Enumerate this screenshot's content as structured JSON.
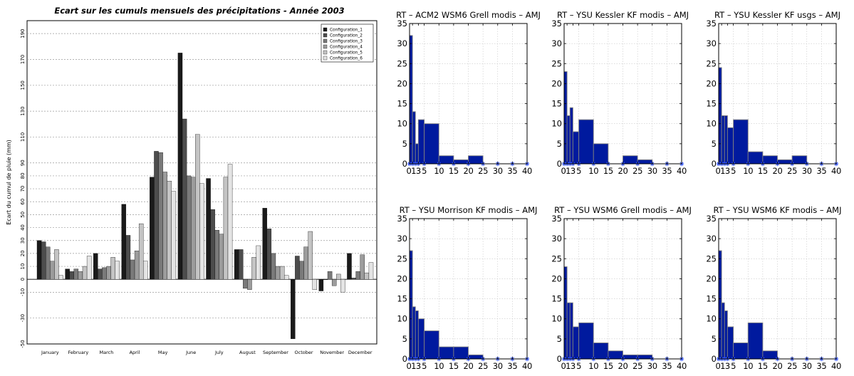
{
  "left_chart": {
    "title": "Ecart sur les cumuls mensuels des précipitations - Année 2003",
    "ylabel": "Ecart du cumul de pluie (mm)",
    "legend_colors": [
      "#1a1a1a",
      "#4d4d4d",
      "#7a7a7a",
      "#9c9c9c",
      "#c4c4c4",
      "#e4e4e4"
    ]
  },
  "hist_style": {
    "bar_color": "#001a9e",
    "marker_color": "#3355ff"
  },
  "chart_data": [
    {
      "type": "bar",
      "title": "Ecart sur les cumuls mensuels des précipitations - Année 2003",
      "xlabel": "",
      "ylabel": "Ecart du cumul de pluie (mm)",
      "ylim": [
        -50,
        200
      ],
      "yticks": [
        -50,
        -30,
        -10,
        0,
        10,
        20,
        30,
        40,
        50,
        60,
        70,
        80,
        90,
        110,
        130,
        150,
        170,
        190
      ],
      "legend_position": "top-right",
      "grid": true,
      "categories": [
        "January",
        "February",
        "March",
        "April",
        "May",
        "June",
        "July",
        "August",
        "September",
        "October",
        "November",
        "December"
      ],
      "series": [
        {
          "name": "Configuration_1",
          "values": [
            30,
            8,
            20,
            58,
            79,
            175,
            78,
            23,
            55,
            -46,
            -9,
            20
          ]
        },
        {
          "name": "Configuration_2",
          "values": [
            29,
            6,
            8,
            34,
            99,
            124,
            54,
            23,
            39,
            18,
            0,
            1
          ]
        },
        {
          "name": "Configuration_3",
          "values": [
            25,
            8,
            9,
            15,
            98,
            80,
            38,
            -7,
            20,
            14,
            6,
            6
          ]
        },
        {
          "name": "Configuration_4",
          "values": [
            14,
            6,
            10,
            22,
            83,
            79,
            35,
            -8,
            10,
            25,
            -5,
            19
          ]
        },
        {
          "name": "Configuration_5",
          "values": [
            23,
            10,
            17,
            43,
            76,
            112,
            79,
            17,
            10,
            37,
            4,
            5
          ]
        },
        {
          "name": "Configuration_6",
          "values": [
            3,
            18,
            14,
            14,
            68,
            74,
            89,
            26,
            3,
            -8,
            -10,
            13
          ]
        }
      ]
    },
    {
      "type": "bar",
      "title": "RT – ACM2 WSM6 Grell modis – AMJ",
      "xlim": [
        0,
        40
      ],
      "ylim": [
        0,
        35
      ],
      "xticks": [
        0,
        1,
        3,
        5,
        10,
        15,
        20,
        25,
        30,
        35,
        40
      ],
      "xticklabels": [
        "0",
        "1",
        "3",
        "5",
        "10",
        "15",
        "20",
        "25",
        "30",
        "35",
        "40"
      ],
      "yticks": [
        0,
        5,
        10,
        15,
        20,
        25,
        30,
        35
      ],
      "grid": true,
      "bin_edges": [
        0,
        1,
        2,
        3,
        5,
        10,
        15,
        20,
        25,
        30,
        35,
        40
      ],
      "counts": [
        32,
        13,
        5,
        11,
        10,
        2,
        1,
        2,
        0,
        0,
        0
      ]
    },
    {
      "type": "bar",
      "title": "RT – YSU Kessler KF modis – AMJ",
      "xlim": [
        0,
        40
      ],
      "ylim": [
        0,
        35
      ],
      "xticks": [
        0,
        1,
        3,
        5,
        10,
        15,
        20,
        25,
        30,
        35,
        40
      ],
      "xticklabels": [
        "0",
        "1",
        "3",
        "5",
        "10",
        "15",
        "20",
        "25",
        "30",
        "35",
        "40"
      ],
      "yticks": [
        0,
        5,
        10,
        15,
        20,
        25,
        30,
        35
      ],
      "grid": true,
      "bin_edges": [
        0,
        1,
        2,
        3,
        5,
        10,
        15,
        20,
        25,
        30,
        35,
        40
      ],
      "counts": [
        23,
        12,
        14,
        8,
        11,
        5,
        0,
        2,
        1,
        0,
        0
      ]
    },
    {
      "type": "bar",
      "title": "RT – YSU Kessler KF usgs – AMJ",
      "xlim": [
        0,
        40
      ],
      "ylim": [
        0,
        35
      ],
      "xticks": [
        0,
        1,
        3,
        5,
        10,
        15,
        20,
        25,
        30,
        35,
        40
      ],
      "xticklabels": [
        "0",
        "1",
        "3",
        "5",
        "10",
        "15",
        "20",
        "25",
        "30",
        "35",
        "40"
      ],
      "yticks": [
        0,
        5,
        10,
        15,
        20,
        25,
        30,
        35
      ],
      "grid": true,
      "bin_edges": [
        0,
        1,
        2,
        3,
        5,
        10,
        15,
        20,
        25,
        30,
        35,
        40
      ],
      "counts": [
        24,
        12,
        12,
        9,
        11,
        3,
        2,
        1,
        2,
        0,
        0
      ]
    },
    {
      "type": "bar",
      "title": "RT – YSU Morrison KF modis – AMJ",
      "xlim": [
        0,
        40
      ],
      "ylim": [
        0,
        35
      ],
      "xticks": [
        0,
        1,
        3,
        5,
        10,
        15,
        20,
        25,
        30,
        35,
        40
      ],
      "xticklabels": [
        "0",
        "1",
        "3",
        "5",
        "10",
        "15",
        "20",
        "25",
        "30",
        "35",
        "40"
      ],
      "yticks": [
        0,
        5,
        10,
        15,
        20,
        25,
        30,
        35
      ],
      "grid": true,
      "bin_edges": [
        0,
        1,
        2,
        3,
        5,
        10,
        15,
        20,
        25,
        30,
        35,
        40
      ],
      "counts": [
        27,
        13,
        12,
        10,
        7,
        3,
        3,
        1,
        0,
        0,
        0
      ]
    },
    {
      "type": "bar",
      "title": "RT – YSU WSM6 Grell modis – AMJ",
      "xlim": [
        0,
        40
      ],
      "ylim": [
        0,
        35
      ],
      "xticks": [
        0,
        1,
        3,
        5,
        10,
        15,
        20,
        25,
        30,
        35,
        40
      ],
      "xticklabels": [
        "0",
        "1",
        "3",
        "5",
        "10",
        "15",
        "20",
        "25",
        "30",
        "35",
        "40"
      ],
      "yticks": [
        0,
        5,
        10,
        15,
        20,
        25,
        30,
        35
      ],
      "grid": true,
      "bin_edges": [
        0,
        1,
        2,
        3,
        5,
        10,
        15,
        20,
        25,
        30,
        35,
        40
      ],
      "counts": [
        23,
        14,
        14,
        8,
        9,
        4,
        2,
        1,
        1,
        0,
        0
      ]
    },
    {
      "type": "bar",
      "title": "RT – YSU WSM6 KF modis – AMJ",
      "xlim": [
        0,
        40
      ],
      "ylim": [
        0,
        35
      ],
      "xticks": [
        0,
        1,
        3,
        5,
        10,
        15,
        20,
        25,
        30,
        35,
        40
      ],
      "xticklabels": [
        "0",
        "1",
        "3",
        "5",
        "10",
        "15",
        "20",
        "25",
        "30",
        "35",
        "40"
      ],
      "yticks": [
        0,
        5,
        10,
        15,
        20,
        25,
        30,
        35
      ],
      "grid": true,
      "bin_edges": [
        0,
        1,
        2,
        3,
        5,
        10,
        15,
        20,
        25,
        30,
        35,
        40
      ],
      "counts": [
        27,
        14,
        12,
        8,
        4,
        9,
        2,
        0,
        0,
        0,
        0
      ]
    }
  ]
}
